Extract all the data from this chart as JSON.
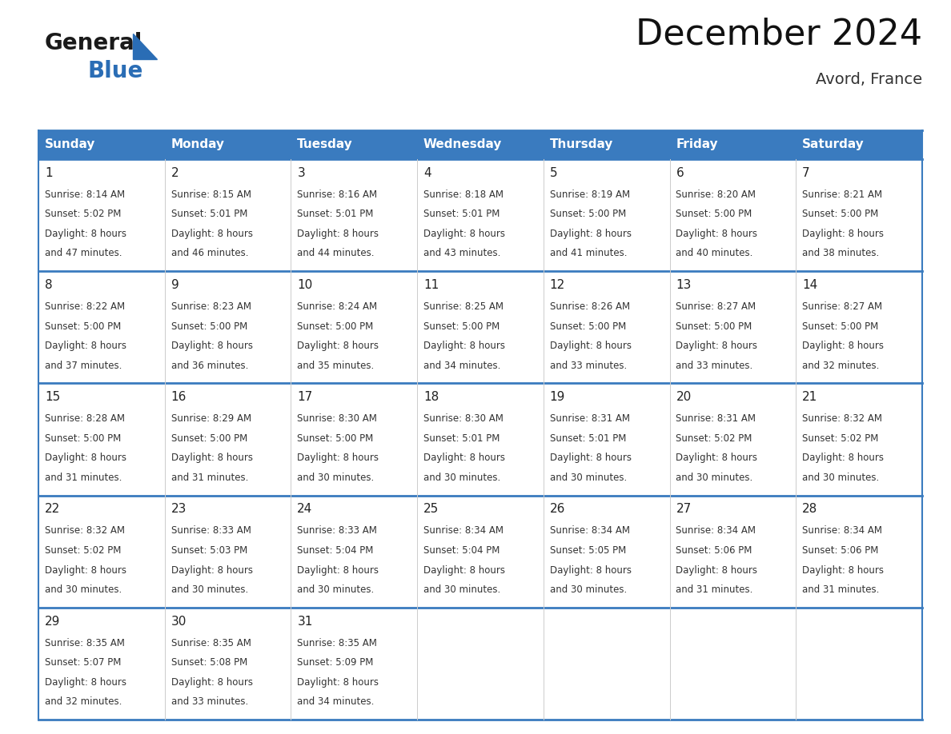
{
  "title": "December 2024",
  "subtitle": "Avord, France",
  "header_bg_color": "#3a7bbf",
  "header_text_color": "#ffffff",
  "cell_bg_color": "#ffffff",
  "cell_text_color": "#333333",
  "day_number_color": "#222222",
  "grid_line_color": "#3a7bbf",
  "grid_line_thin_color": "#cccccc",
  "weekdays": [
    "Sunday",
    "Monday",
    "Tuesday",
    "Wednesday",
    "Thursday",
    "Friday",
    "Saturday"
  ],
  "weeks": [
    [
      {
        "day": 1,
        "sunrise": "8:14 AM",
        "sunset": "5:02 PM",
        "daylight_hours": 8,
        "daylight_minutes": 47
      },
      {
        "day": 2,
        "sunrise": "8:15 AM",
        "sunset": "5:01 PM",
        "daylight_hours": 8,
        "daylight_minutes": 46
      },
      {
        "day": 3,
        "sunrise": "8:16 AM",
        "sunset": "5:01 PM",
        "daylight_hours": 8,
        "daylight_minutes": 44
      },
      {
        "day": 4,
        "sunrise": "8:18 AM",
        "sunset": "5:01 PM",
        "daylight_hours": 8,
        "daylight_minutes": 43
      },
      {
        "day": 5,
        "sunrise": "8:19 AM",
        "sunset": "5:00 PM",
        "daylight_hours": 8,
        "daylight_minutes": 41
      },
      {
        "day": 6,
        "sunrise": "8:20 AM",
        "sunset": "5:00 PM",
        "daylight_hours": 8,
        "daylight_minutes": 40
      },
      {
        "day": 7,
        "sunrise": "8:21 AM",
        "sunset": "5:00 PM",
        "daylight_hours": 8,
        "daylight_minutes": 38
      }
    ],
    [
      {
        "day": 8,
        "sunrise": "8:22 AM",
        "sunset": "5:00 PM",
        "daylight_hours": 8,
        "daylight_minutes": 37
      },
      {
        "day": 9,
        "sunrise": "8:23 AM",
        "sunset": "5:00 PM",
        "daylight_hours": 8,
        "daylight_minutes": 36
      },
      {
        "day": 10,
        "sunrise": "8:24 AM",
        "sunset": "5:00 PM",
        "daylight_hours": 8,
        "daylight_minutes": 35
      },
      {
        "day": 11,
        "sunrise": "8:25 AM",
        "sunset": "5:00 PM",
        "daylight_hours": 8,
        "daylight_minutes": 34
      },
      {
        "day": 12,
        "sunrise": "8:26 AM",
        "sunset": "5:00 PM",
        "daylight_hours": 8,
        "daylight_minutes": 33
      },
      {
        "day": 13,
        "sunrise": "8:27 AM",
        "sunset": "5:00 PM",
        "daylight_hours": 8,
        "daylight_minutes": 33
      },
      {
        "day": 14,
        "sunrise": "8:27 AM",
        "sunset": "5:00 PM",
        "daylight_hours": 8,
        "daylight_minutes": 32
      }
    ],
    [
      {
        "day": 15,
        "sunrise": "8:28 AM",
        "sunset": "5:00 PM",
        "daylight_hours": 8,
        "daylight_minutes": 31
      },
      {
        "day": 16,
        "sunrise": "8:29 AM",
        "sunset": "5:00 PM",
        "daylight_hours": 8,
        "daylight_minutes": 31
      },
      {
        "day": 17,
        "sunrise": "8:30 AM",
        "sunset": "5:00 PM",
        "daylight_hours": 8,
        "daylight_minutes": 30
      },
      {
        "day": 18,
        "sunrise": "8:30 AM",
        "sunset": "5:01 PM",
        "daylight_hours": 8,
        "daylight_minutes": 30
      },
      {
        "day": 19,
        "sunrise": "8:31 AM",
        "sunset": "5:01 PM",
        "daylight_hours": 8,
        "daylight_minutes": 30
      },
      {
        "day": 20,
        "sunrise": "8:31 AM",
        "sunset": "5:02 PM",
        "daylight_hours": 8,
        "daylight_minutes": 30
      },
      {
        "day": 21,
        "sunrise": "8:32 AM",
        "sunset": "5:02 PM",
        "daylight_hours": 8,
        "daylight_minutes": 30
      }
    ],
    [
      {
        "day": 22,
        "sunrise": "8:32 AM",
        "sunset": "5:02 PM",
        "daylight_hours": 8,
        "daylight_minutes": 30
      },
      {
        "day": 23,
        "sunrise": "8:33 AM",
        "sunset": "5:03 PM",
        "daylight_hours": 8,
        "daylight_minutes": 30
      },
      {
        "day": 24,
        "sunrise": "8:33 AM",
        "sunset": "5:04 PM",
        "daylight_hours": 8,
        "daylight_minutes": 30
      },
      {
        "day": 25,
        "sunrise": "8:34 AM",
        "sunset": "5:04 PM",
        "daylight_hours": 8,
        "daylight_minutes": 30
      },
      {
        "day": 26,
        "sunrise": "8:34 AM",
        "sunset": "5:05 PM",
        "daylight_hours": 8,
        "daylight_minutes": 30
      },
      {
        "day": 27,
        "sunrise": "8:34 AM",
        "sunset": "5:06 PM",
        "daylight_hours": 8,
        "daylight_minutes": 31
      },
      {
        "day": 28,
        "sunrise": "8:34 AM",
        "sunset": "5:06 PM",
        "daylight_hours": 8,
        "daylight_minutes": 31
      }
    ],
    [
      {
        "day": 29,
        "sunrise": "8:35 AM",
        "sunset": "5:07 PM",
        "daylight_hours": 8,
        "daylight_minutes": 32
      },
      {
        "day": 30,
        "sunrise": "8:35 AM",
        "sunset": "5:08 PM",
        "daylight_hours": 8,
        "daylight_minutes": 33
      },
      {
        "day": 31,
        "sunrise": "8:35 AM",
        "sunset": "5:09 PM",
        "daylight_hours": 8,
        "daylight_minutes": 34
      },
      null,
      null,
      null,
      null
    ]
  ],
  "logo_general_color": "#1a1a1a",
  "logo_blue_color": "#2a6db5",
  "logo_triangle_color": "#2a6db5",
  "title_fontsize": 32,
  "subtitle_fontsize": 14,
  "header_fontsize": 11,
  "day_num_fontsize": 11,
  "cell_fontsize": 8.5
}
